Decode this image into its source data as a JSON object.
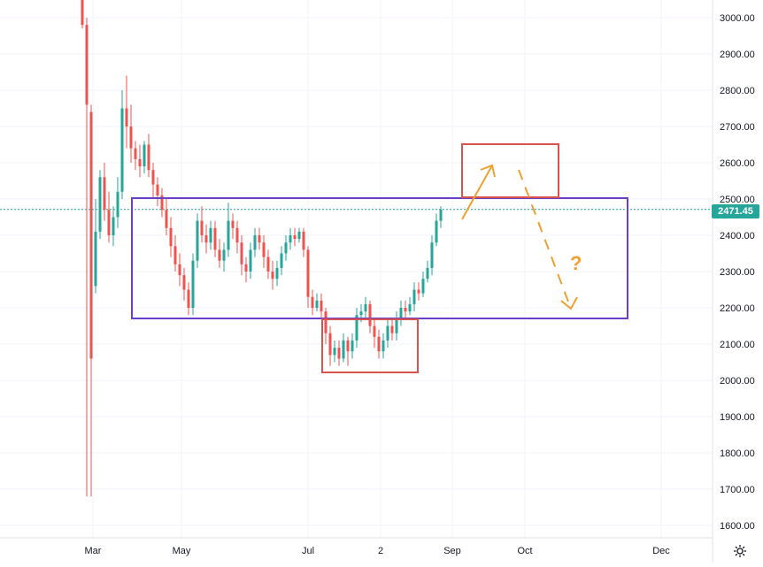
{
  "chart_data": {
    "type": "candlestick",
    "y_ticks": [
      "3000.00",
      "2900.00",
      "2800.00",
      "2700.00",
      "2600.00",
      "2500.00",
      "2400.00",
      "2300.00",
      "2200.00",
      "2100.00",
      "2000.00",
      "1900.00",
      "1800.00",
      "1700.00",
      "1600.00"
    ],
    "x_ticks": [
      "Mar",
      "May",
      "Jul",
      "2",
      "Sep",
      "Oct",
      "Dec"
    ],
    "ylim": [
      1575,
      3050
    ],
    "last_price": "2471.45",
    "colors": {
      "up": "#26a69a",
      "down": "#ef5350",
      "grid": "#f0f3fa",
      "range_box": "#6a3fc7",
      "target_box": "#d9534f",
      "arrow": "#f0a030"
    },
    "candles": [
      [
        2,
        3050,
        2980,
        3060,
        2970
      ],
      [
        3,
        2980,
        2760,
        3000,
        1680
      ],
      [
        4,
        2740,
        2060,
        2760,
        1680
      ],
      [
        5,
        2260,
        2410,
        2500,
        2240
      ],
      [
        6,
        2410,
        2560,
        2580,
        2390
      ],
      [
        7,
        2560,
        2470,
        2600,
        2440
      ],
      [
        8,
        2470,
        2400,
        2520,
        2380
      ],
      [
        9,
        2400,
        2450,
        2480,
        2370
      ],
      [
        10,
        2450,
        2520,
        2560,
        2420
      ],
      [
        11,
        2520,
        2750,
        2800,
        2500
      ],
      [
        12,
        2750,
        2700,
        2840,
        2640
      ],
      [
        13,
        2700,
        2640,
        2760,
        2600
      ],
      [
        14,
        2640,
        2610,
        2660,
        2580
      ],
      [
        15,
        2610,
        2590,
        2650,
        2560
      ],
      [
        16,
        2590,
        2650,
        2660,
        2570
      ],
      [
        17,
        2650,
        2580,
        2680,
        2560
      ],
      [
        18,
        2580,
        2540,
        2600,
        2500
      ],
      [
        19,
        2540,
        2510,
        2560,
        2480
      ],
      [
        20,
        2510,
        2470,
        2530,
        2450
      ],
      [
        21,
        2470,
        2420,
        2500,
        2400
      ],
      [
        22,
        2420,
        2370,
        2450,
        2340
      ],
      [
        23,
        2370,
        2320,
        2400,
        2300
      ],
      [
        24,
        2320,
        2290,
        2350,
        2260
      ],
      [
        25,
        2290,
        2250,
        2310,
        2220
      ],
      [
        26,
        2250,
        2200,
        2270,
        2180
      ],
      [
        27,
        2200,
        2330,
        2350,
        2180
      ],
      [
        28,
        2330,
        2440,
        2460,
        2310
      ],
      [
        29,
        2440,
        2400,
        2480,
        2380
      ],
      [
        30,
        2400,
        2380,
        2430,
        2350
      ],
      [
        31,
        2380,
        2420,
        2440,
        2360
      ],
      [
        32,
        2420,
        2360,
        2440,
        2340
      ],
      [
        33,
        2360,
        2330,
        2390,
        2310
      ],
      [
        34,
        2330,
        2360,
        2380,
        2300
      ],
      [
        35,
        2360,
        2440,
        2490,
        2340
      ],
      [
        36,
        2440,
        2420,
        2460,
        2390
      ],
      [
        37,
        2420,
        2380,
        2440,
        2350
      ],
      [
        38,
        2380,
        2320,
        2400,
        2290
      ],
      [
        39,
        2320,
        2300,
        2340,
        2270
      ],
      [
        40,
        2300,
        2360,
        2380,
        2280
      ],
      [
        41,
        2360,
        2400,
        2420,
        2340
      ],
      [
        42,
        2400,
        2380,
        2420,
        2360
      ],
      [
        43,
        2380,
        2340,
        2400,
        2310
      ],
      [
        44,
        2340,
        2300,
        2360,
        2280
      ],
      [
        45,
        2300,
        2280,
        2330,
        2250
      ],
      [
        46,
        2280,
        2310,
        2330,
        2260
      ],
      [
        47,
        2310,
        2350,
        2370,
        2290
      ],
      [
        48,
        2350,
        2380,
        2400,
        2330
      ],
      [
        49,
        2380,
        2400,
        2420,
        2360
      ],
      [
        50,
        2400,
        2390,
        2420,
        2370
      ],
      [
        51,
        2390,
        2410,
        2420,
        2380
      ],
      [
        52,
        2410,
        2360,
        2420,
        2340
      ],
      [
        53,
        2360,
        2230,
        2370,
        2200
      ],
      [
        54,
        2230,
        2200,
        2250,
        2180
      ],
      [
        55,
        2200,
        2220,
        2240,
        2190
      ],
      [
        56,
        2220,
        2190,
        2240,
        2170
      ],
      [
        57,
        2190,
        2130,
        2200,
        2100
      ],
      [
        58,
        2130,
        2070,
        2150,
        2040
      ],
      [
        59,
        2070,
        2090,
        2110,
        2050
      ],
      [
        60,
        2090,
        2060,
        2110,
        2040
      ],
      [
        61,
        2060,
        2110,
        2130,
        2050
      ],
      [
        62,
        2110,
        2080,
        2120,
        2040
      ],
      [
        63,
        2080,
        2110,
        2130,
        2060
      ],
      [
        64,
        2110,
        2180,
        2200,
        2090
      ],
      [
        65,
        2180,
        2190,
        2210,
        2160
      ],
      [
        66,
        2190,
        2210,
        2230,
        2170
      ],
      [
        67,
        2210,
        2150,
        2220,
        2130
      ],
      [
        68,
        2150,
        2120,
        2170,
        2090
      ],
      [
        69,
        2120,
        2080,
        2140,
        2060
      ],
      [
        70,
        2080,
        2110,
        2130,
        2060
      ],
      [
        71,
        2110,
        2150,
        2170,
        2090
      ],
      [
        72,
        2150,
        2130,
        2170,
        2110
      ],
      [
        73,
        2130,
        2170,
        2190,
        2110
      ],
      [
        74,
        2170,
        2200,
        2220,
        2150
      ],
      [
        75,
        2200,
        2190,
        2220,
        2170
      ],
      [
        76,
        2190,
        2210,
        2230,
        2180
      ],
      [
        77,
        2210,
        2250,
        2270,
        2190
      ],
      [
        78,
        2250,
        2240,
        2270,
        2220
      ],
      [
        79,
        2240,
        2280,
        2300,
        2230
      ],
      [
        80,
        2280,
        2310,
        2330,
        2270
      ],
      [
        81,
        2310,
        2380,
        2400,
        2290
      ],
      [
        82,
        2380,
        2440,
        2460,
        2370
      ],
      [
        83,
        2440,
        2471,
        2480,
        2420
      ]
    ]
  },
  "ui": {
    "settings_icon": "gear-icon"
  }
}
